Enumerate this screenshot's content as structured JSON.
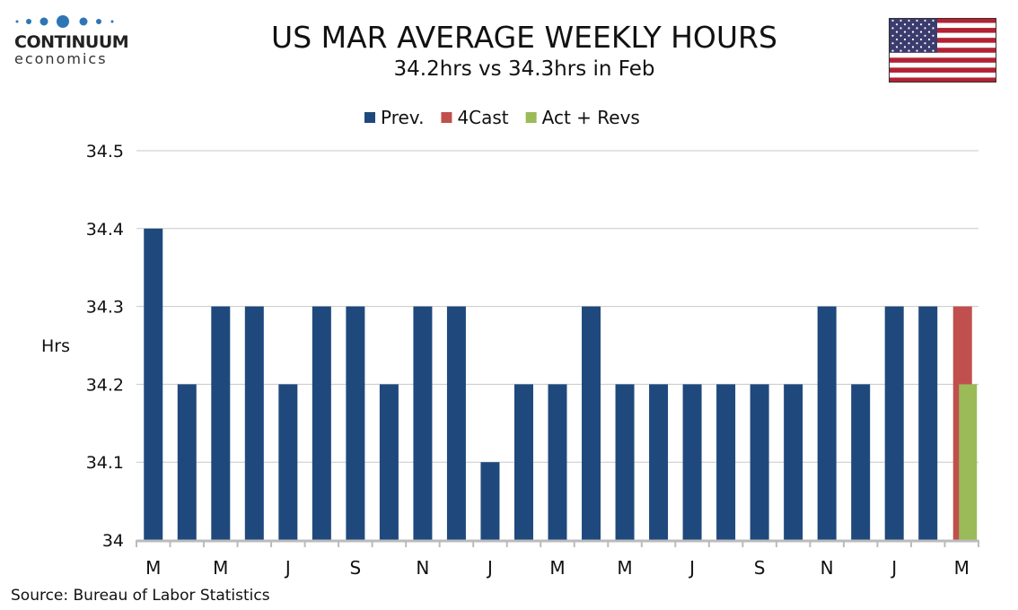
{
  "logo": {
    "name": "CONTINUUM",
    "sub": "economics"
  },
  "source": "Source: Bureau of Labor Statistics",
  "flag": "us-flag",
  "chart_data": {
    "type": "bar",
    "title": "US MAR AVERAGE WEEKLY HOURS",
    "subtitle": "34.2hrs vs 34.3hrs in Feb",
    "ylabel": "Hrs",
    "ylim": [
      34,
      34.5
    ],
    "yticks": [
      "34",
      "34.1",
      "34.2",
      "34.3",
      "34.4",
      "34.5"
    ],
    "grid": true,
    "legend_placement": "top",
    "xtick_labels": [
      "M",
      "",
      "M",
      "",
      "J",
      "",
      "S",
      "",
      "N",
      "",
      "J",
      "",
      "M",
      "",
      "M",
      "",
      "J",
      "",
      "S",
      "",
      "N",
      "",
      "J",
      "",
      "M"
    ],
    "series": [
      {
        "name": "Prev.",
        "color": "#1f497d",
        "values": [
          34.4,
          34.2,
          34.3,
          34.3,
          34.2,
          34.3,
          34.3,
          34.2,
          34.3,
          34.3,
          34.1,
          34.2,
          34.2,
          34.3,
          34.2,
          34.2,
          34.2,
          34.2,
          34.2,
          34.2,
          34.3,
          34.2,
          34.3,
          34.3,
          null
        ]
      },
      {
        "name": "4Cast",
        "color": "#c0504d",
        "values": [
          null,
          null,
          null,
          null,
          null,
          null,
          null,
          null,
          null,
          null,
          null,
          null,
          null,
          null,
          null,
          null,
          null,
          null,
          null,
          null,
          null,
          null,
          null,
          null,
          34.3
        ]
      },
      {
        "name": "Act + Revs",
        "color": "#9bbb59",
        "values": [
          null,
          null,
          null,
          null,
          null,
          null,
          null,
          null,
          null,
          null,
          null,
          null,
          null,
          null,
          null,
          null,
          null,
          null,
          null,
          null,
          null,
          null,
          null,
          null,
          34.2
        ]
      }
    ]
  }
}
